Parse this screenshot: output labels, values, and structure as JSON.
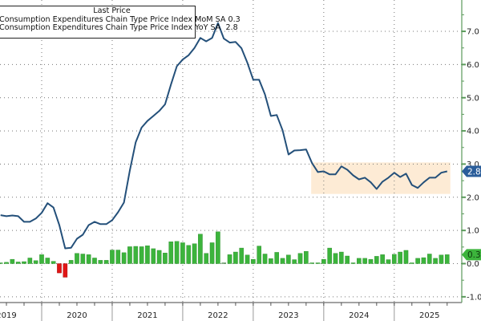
{
  "chart_data": {
    "type": "bar+line",
    "legend": {
      "title": "Last Price",
      "placement": "top-left",
      "entries": [
        {
          "name": "Consumption Expenditures Chain Type Price Index MoM SA",
          "last": "0.3",
          "type": "bar"
        },
        {
          "name": "Consumption Expenditures Chain Type Price Index YoY SA",
          "last": "2.8",
          "type": "line"
        }
      ]
    },
    "x_start": "2019-05",
    "x_end": "2025-09",
    "x_tick_labels": [
      "2019",
      "2020",
      "2021",
      "2022",
      "2023",
      "2024",
      "2025"
    ],
    "y_axis_side": "right",
    "ylim": [
      -1.0,
      7.6
    ],
    "y_tick_labels": [
      "-1.0",
      "0.0",
      "1.0",
      "2.0",
      "3.0",
      "4.0",
      "5.0",
      "6.0",
      "7.0"
    ],
    "grid": true,
    "series": [
      {
        "name": "Consumption Expenditures Chain Type Price Index YoY SA",
        "type": "line",
        "color": "#24507a",
        "values": [
          1.46,
          1.43,
          1.45,
          1.43,
          1.26,
          1.26,
          1.36,
          1.53,
          1.82,
          1.69,
          1.16,
          0.46,
          0.48,
          0.75,
          0.87,
          1.16,
          1.26,
          1.19,
          1.19,
          1.31,
          1.55,
          1.84,
          2.8,
          3.66,
          4.1,
          4.3,
          4.45,
          4.6,
          4.8,
          5.4,
          5.95,
          6.15,
          6.28,
          6.5,
          6.8,
          6.7,
          6.8,
          7.25,
          6.78,
          6.66,
          6.68,
          6.49,
          6.05,
          5.54,
          5.54,
          5.1,
          4.45,
          4.48,
          4.02,
          3.29,
          3.41,
          3.42,
          3.44,
          3.03,
          2.76,
          2.78,
          2.69,
          2.69,
          2.93,
          2.83,
          2.66,
          2.54,
          2.59,
          2.45,
          2.25,
          2.47,
          2.59,
          2.74,
          2.61,
          2.71,
          2.37,
          2.28,
          2.45,
          2.59,
          2.59,
          2.74,
          2.78
        ]
      },
      {
        "name": "Consumption Expenditures Chain Type Price Index MoM SA",
        "type": "bar",
        "color_positive": "#3cb43c",
        "color_negative": "#e01515",
        "color_zero": "#888888",
        "values": [
          0.02,
          0.04,
          0.13,
          0.05,
          0.06,
          0.17,
          0.09,
          0.27,
          0.17,
          0.07,
          -0.28,
          -0.41,
          0.1,
          0.31,
          0.29,
          0.27,
          0.17,
          0.1,
          0.1,
          0.41,
          0.41,
          0.33,
          0.51,
          0.52,
          0.51,
          0.54,
          0.45,
          0.4,
          0.32,
          0.66,
          0.67,
          0.63,
          0.55,
          0.6,
          0.89,
          0.31,
          0.63,
          0.96,
          0.0,
          0.27,
          0.35,
          0.47,
          0.26,
          0.13,
          0.53,
          0.29,
          0.15,
          0.34,
          0.16,
          0.26,
          0.12,
          0.31,
          0.37,
          0.02,
          0.01,
          0.13,
          0.47,
          0.31,
          0.35,
          0.23,
          0.01,
          0.16,
          0.16,
          0.13,
          0.22,
          0.27,
          0.12,
          0.28,
          0.35,
          0.4,
          0.01,
          0.16,
          0.18,
          0.29,
          0.16,
          0.26,
          0.27
        ]
      }
    ],
    "annotations": {
      "shaded_band": {
        "from": "2023-10",
        "to": "2025-09",
        "y_low": 2.1,
        "y_high": 3.05,
        "color": "#fdebd5"
      },
      "last_value_tags": [
        {
          "value": "2.8",
          "color": "#2a5d9a"
        },
        {
          "value": "0.3",
          "color": "#3cb43c"
        }
      ]
    },
    "axis_color": "#5a9a5a"
  }
}
